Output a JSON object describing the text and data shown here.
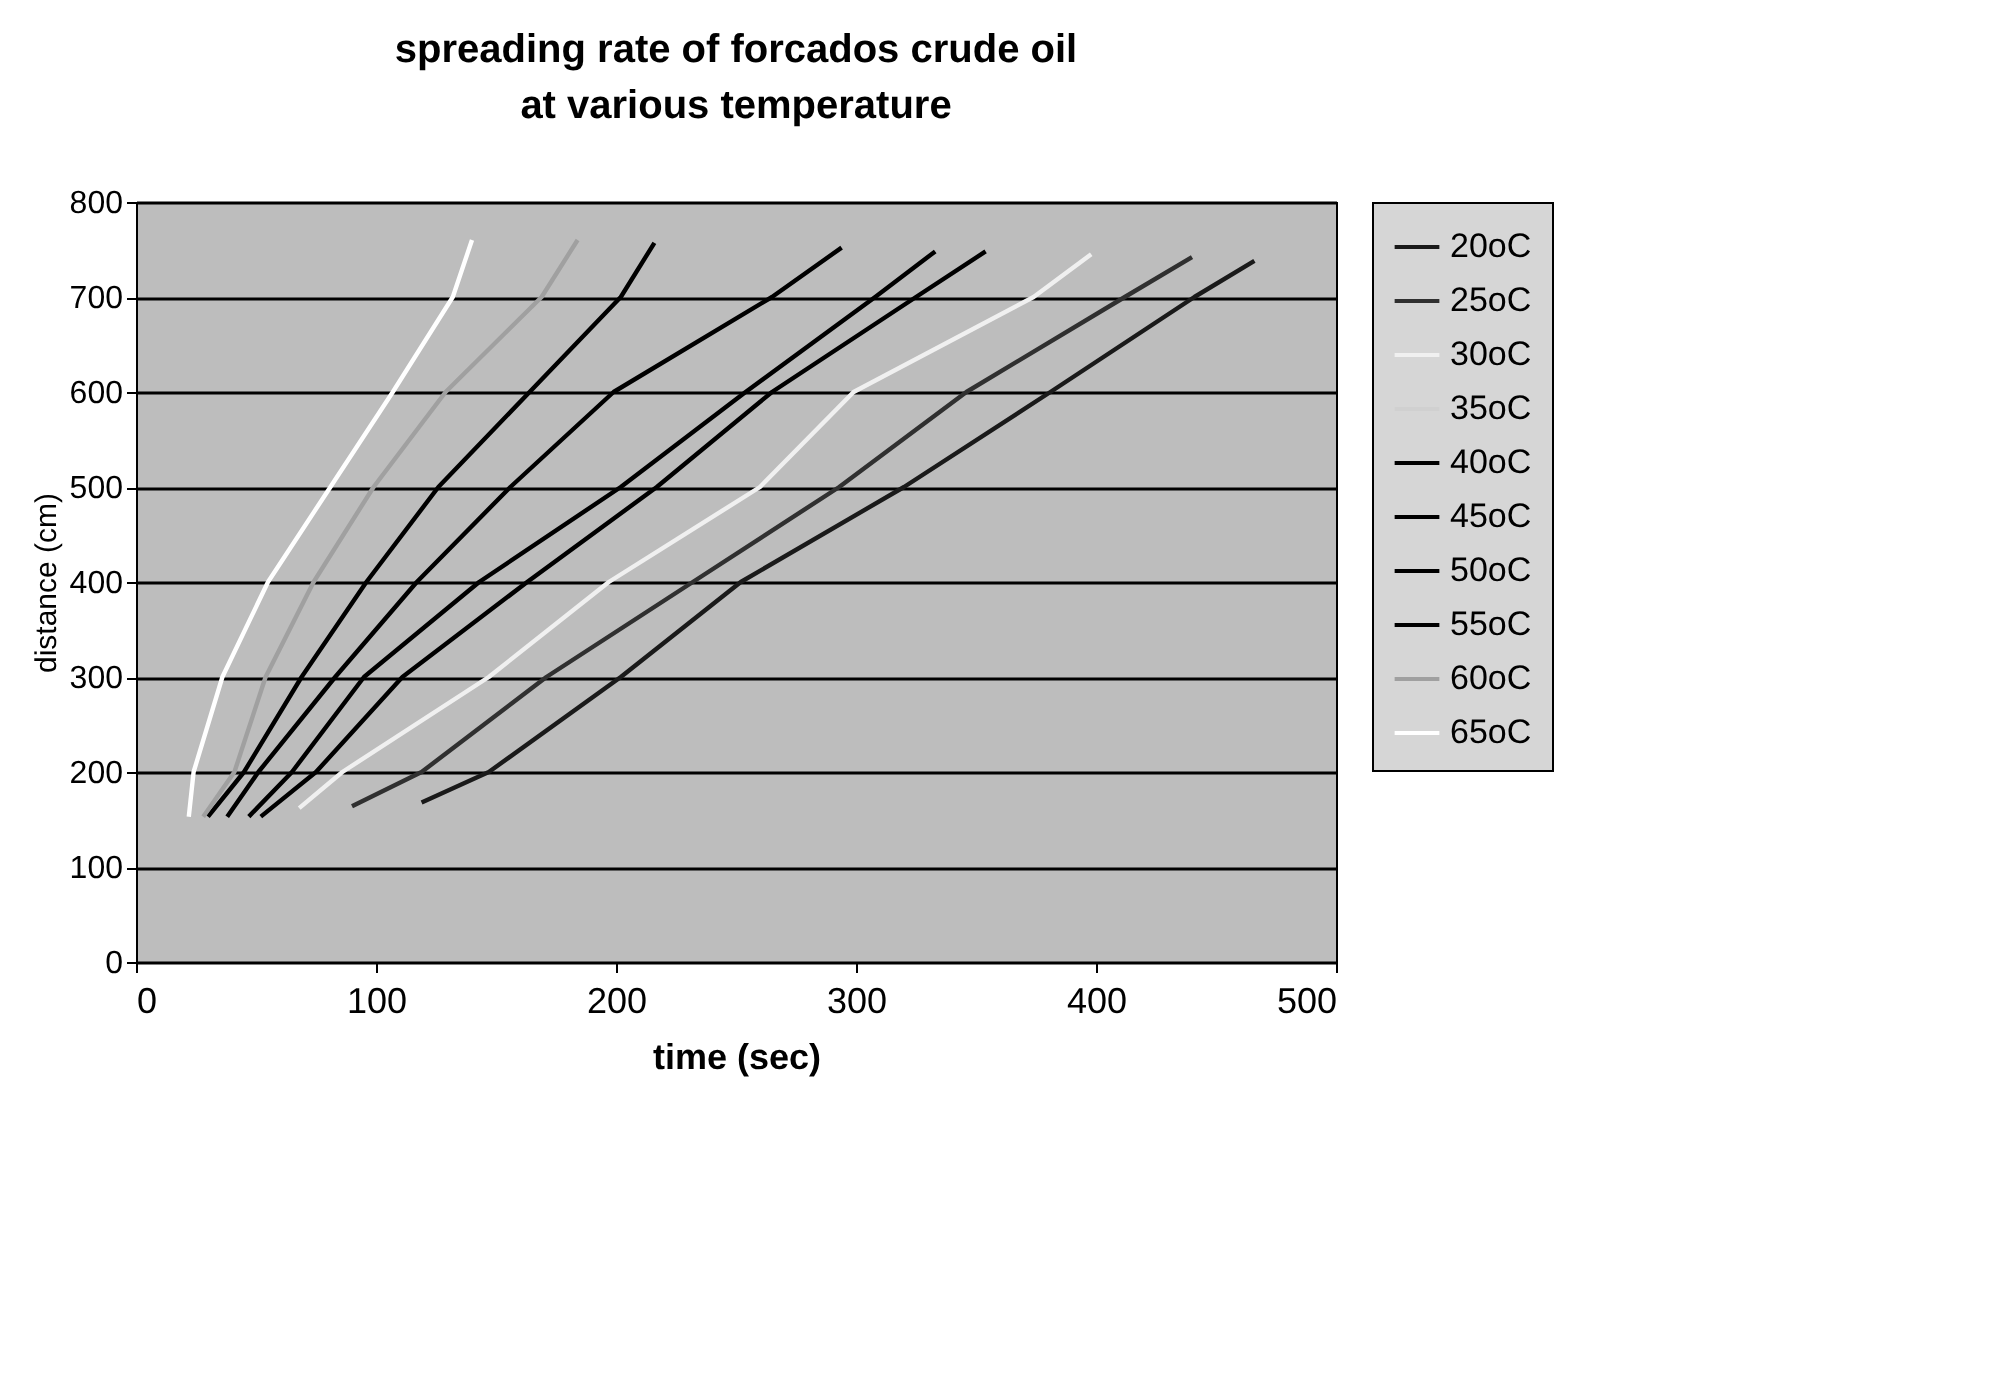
{
  "chart_data": {
    "type": "line",
    "title": "spreading rate of forcados crude oil at various temperature",
    "xlabel": "time (sec)",
    "ylabel": "distance (cm)",
    "xlim": [
      0,
      500
    ],
    "xticks": [
      0,
      100,
      200,
      300,
      400,
      500
    ],
    "ylim": [
      0,
      800
    ],
    "yticks": [
      0,
      100,
      200,
      300,
      400,
      500,
      600,
      700,
      800
    ],
    "grid": "y",
    "legend": "right",
    "marker": "none",
    "line_style": "solid",
    "series": [
      {
        "name": "20oC",
        "color": "#1a1a1a",
        "x": [
          119,
          147,
          202,
          252,
          320,
          381,
          441,
          466
        ],
        "values": [
          168,
          200,
          300,
          400,
          500,
          600,
          700,
          738
        ]
      },
      {
        "name": "25oC",
        "color": "#303030",
        "x": [
          90,
          119,
          171,
          232,
          293,
          346,
          412,
          440
        ],
        "values": [
          164,
          200,
          300,
          400,
          500,
          600,
          700,
          742
        ]
      },
      {
        "name": "30oC",
        "color": "#f0f0f0",
        "x": [
          68,
          86,
          147,
          197,
          260,
          299,
          374,
          398
        ],
        "values": [
          162,
          200,
          300,
          400,
          500,
          600,
          700,
          745
        ]
      },
      {
        "name": "35oC",
        "color": "#d0d0d0"
      },
      {
        "name": "40oC",
        "color": "#000000",
        "x": [
          52,
          75,
          111,
          163,
          217,
          265,
          325,
          354
        ],
        "values": [
          153,
          200,
          300,
          400,
          500,
          600,
          700,
          748
        ]
      },
      {
        "name": "45oC",
        "color": "#000000",
        "x": [
          47,
          65,
          95,
          143,
          202,
          254,
          308,
          333
        ],
        "values": [
          153,
          200,
          300,
          400,
          500,
          600,
          700,
          748
        ]
      },
      {
        "name": "50oC",
        "color": "#000000",
        "x": [
          38,
          51,
          83,
          117,
          156,
          199,
          265,
          294
        ],
        "values": [
          153,
          200,
          300,
          400,
          500,
          600,
          700,
          752
        ]
      },
      {
        "name": "55oC",
        "color": "#000000",
        "x": [
          30,
          45,
          69,
          96,
          126,
          164,
          202,
          216
        ],
        "values": [
          153,
          200,
          300,
          400,
          500,
          600,
          700,
          757
        ]
      },
      {
        "name": "60oC",
        "color": "#a0a0a0",
        "x": [
          28,
          41,
          54,
          74,
          99,
          129,
          169,
          184
        ],
        "values": [
          153,
          200,
          300,
          400,
          500,
          600,
          700,
          760
        ]
      },
      {
        "name": "65oC",
        "color": "#ffffff",
        "x": [
          22,
          24,
          36,
          55,
          81,
          107,
          132,
          140
        ],
        "values": [
          153,
          200,
          300,
          400,
          500,
          600,
          700,
          760
        ]
      }
    ]
  }
}
